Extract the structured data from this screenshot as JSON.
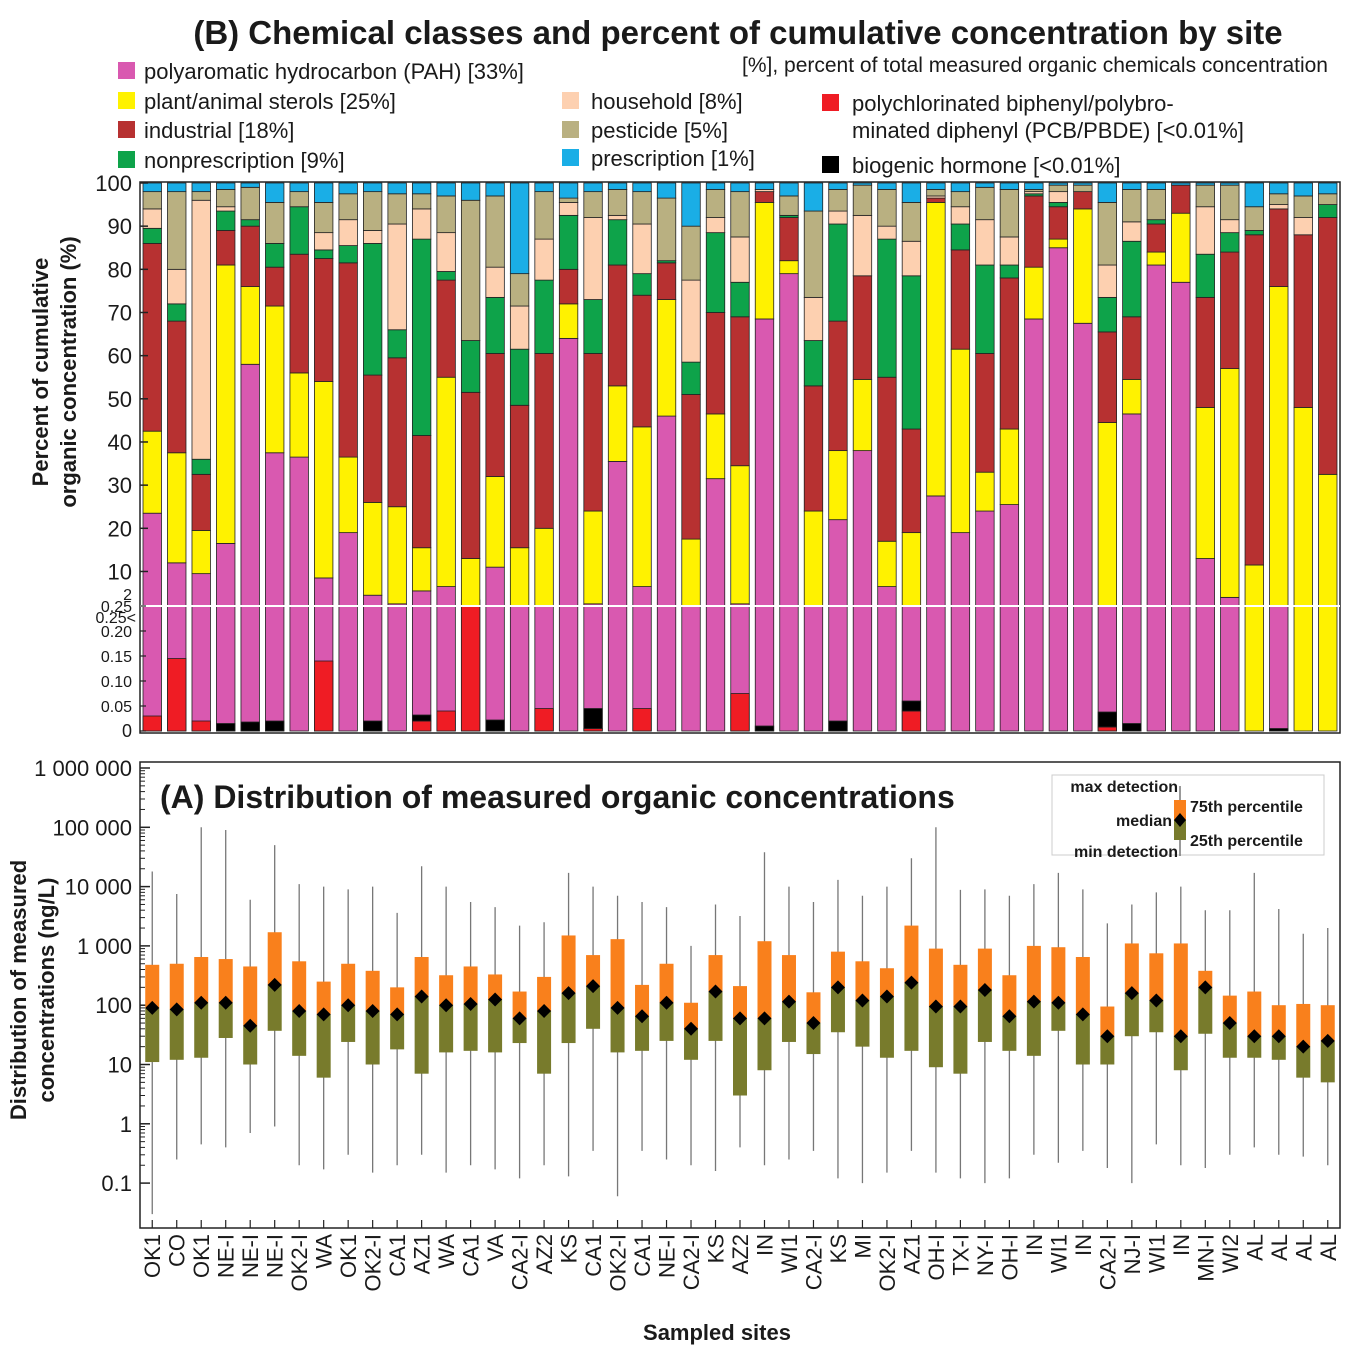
{
  "panel_b": {
    "title": "(B) Chemical classes and percent of cumulative concentration by site",
    "note": "[%], percent of total measured organic chemicals concentration",
    "y_label_line1": "Percent of cumulative",
    "y_label_line2": "organic concentration (%)",
    "legend": [
      {
        "label": "polyaromatic hydrocarbon (PAH) [33%]",
        "color": "#d959b0"
      },
      {
        "label": "plant/animal sterols [25%]",
        "color": "#fff200"
      },
      {
        "label": "industrial [18%]",
        "color": "#b73131"
      },
      {
        "label": "nonprescription [9%]",
        "color": "#0ea34a"
      },
      {
        "label": "household [8%]",
        "color": "#fdd0b0"
      },
      {
        "label": "pesticide [5%]",
        "color": "#b9b081"
      },
      {
        "label": "prescription [1%]",
        "color": "#1aaee6"
      },
      {
        "label": "polychlorinated biphenyl/polybro-",
        "label2": "minated diphenyl (PCB/PBDE) [<0.01%]",
        "color": "#ef1c24"
      },
      {
        "label": "biogenic hormone [<0.01%]",
        "color": "#000000"
      }
    ]
  },
  "panel_a": {
    "title": "(A) Distribution of measured organic concentrations",
    "y_label_line1": "Distribution of measured",
    "y_label_line2": "concentrations  (ng/L)",
    "x_label": "Sampled sites",
    "legend": {
      "max": "max detection",
      "p75": "75th percentile",
      "median": "median",
      "p25": "25th percentile",
      "min": "min detection"
    },
    "colors": {
      "upper": "#f9801c",
      "lower": "#787b2c",
      "median": "#000000",
      "whisker": "#777777"
    }
  },
  "chart_data": [
    {
      "type": "bar",
      "stacked": true,
      "title": "(B) Chemical classes and percent of cumulative concentration by site",
      "ylabel": "Percent of cumulative organic concentration (%)",
      "y_ticks_upper": [
        "10",
        "20",
        "30",
        "40",
        "50",
        "60",
        "70",
        "80",
        "90",
        "100"
      ],
      "y_ticks_lower": [
        "0",
        "0.05",
        "0.10",
        "0.15",
        "0.20",
        "0.25"
      ],
      "y_break_label": "2",
      "y_break_arrow_label": "0.25<",
      "categories": [
        "OK1",
        "CO",
        "OK1",
        "NE-I",
        "NE-I",
        "NE-I",
        "OK2-I",
        "WA",
        "OK1",
        "OK2-I",
        "CA1",
        "AZ1",
        "WA",
        "CA1",
        "VA",
        "CA2-I",
        "AZ2",
        "KS",
        "CA1",
        "OK2-I",
        "CA1",
        "NE-I",
        "CA2-I",
        "KS",
        "AZ2",
        "IN",
        "WI1",
        "CA2-I",
        "KS",
        "MI",
        "OK2-I",
        "AZ1",
        "OH-I",
        "TX-I",
        "NY-I",
        "OH-I",
        "IN",
        "WI1",
        "IN",
        "CA2-I",
        "NJ-I",
        "WI1",
        "IN",
        "MN-I",
        "WI2",
        "AL",
        "AL",
        "AL",
        "AL"
      ],
      "segment_order": [
        "PCB/PBDE",
        "biogenic hormone",
        "PAH",
        "plant/animal sterols",
        "industrial",
        "nonprescription",
        "household",
        "pesticide",
        "prescription"
      ],
      "bottom_detail_values_pct": {
        "PCB/PBDE": [
          0.03,
          0.145,
          0.02,
          0.0,
          0.0,
          0.0,
          0.0,
          0.14,
          0.0,
          0.0,
          0.0,
          0.02,
          0.04,
          0.25,
          0.0,
          0.0,
          0.045,
          0.0,
          0.005,
          0.0,
          0.045,
          0.0,
          0.0,
          0.0,
          0.075,
          0.0,
          0.0,
          0.0,
          0.0,
          0.0,
          0.0,
          0.04,
          0.0,
          0.0,
          0.0,
          0.0,
          0.0,
          0.0,
          0.0,
          0.008,
          0.0,
          0.0,
          0.0,
          0.0,
          0.0,
          0.0,
          0.0,
          0.0,
          0.0
        ],
        "biogenic hormone": [
          0.0,
          0.0,
          0.0,
          0.015,
          0.018,
          0.02,
          0.0,
          0.0,
          0.0,
          0.02,
          0.0,
          0.012,
          0.0,
          0.012,
          0.022,
          0.0,
          0.0,
          0.0,
          0.04,
          0.0,
          0.0,
          0.0,
          0.0,
          0.0,
          0.0,
          0.01,
          0.0,
          0.0,
          0.02,
          0.0,
          0.0,
          0.02,
          0.0,
          0.0,
          0.0,
          0.0,
          0.0,
          0.0,
          0.0,
          0.03,
          0.015,
          0.0,
          0.0,
          0.0,
          0.0,
          0.0,
          0.005,
          0.0,
          0.0
        ]
      },
      "cumulative_tops_pct": {
        "PAH": [
          23.5,
          12,
          9.5,
          16.5,
          58,
          37.5,
          36.5,
          8.5,
          19,
          4.5,
          2.5,
          5.5,
          6.5,
          2,
          11,
          1.5,
          1.5,
          64,
          2.5,
          35.5,
          6.5,
          46,
          1.5,
          31.5,
          2.5,
          68.5,
          79,
          1.5,
          22,
          38,
          6.5,
          1.5,
          27.5,
          19,
          24,
          25.5,
          68.5,
          85,
          67.5,
          1.5,
          46.5,
          81,
          77,
          13,
          4,
          0,
          1.5,
          0,
          0
        ],
        "plant/animal sterols": [
          42.5,
          37.5,
          19.5,
          81,
          76,
          71.5,
          56,
          54,
          36.5,
          26,
          25,
          15.5,
          55,
          13,
          32,
          15.5,
          20,
          72,
          24,
          53,
          43.5,
          73,
          17.5,
          46.5,
          34.5,
          95.5,
          82,
          24,
          38,
          54.5,
          17,
          19,
          95.5,
          61.5,
          33,
          43,
          80.5,
          87,
          94,
          44.5,
          54.5,
          84,
          93,
          48,
          57,
          11.5,
          76,
          48,
          32.5
        ],
        "industrial": [
          86,
          68,
          32.5,
          89,
          90,
          80.5,
          83.5,
          82.5,
          81.5,
          55.5,
          59.5,
          41.5,
          77.5,
          51.5,
          60.5,
          48.5,
          60.5,
          80,
          60.5,
          81,
          74,
          81.5,
          51,
          70,
          69,
          98,
          92,
          53,
          68,
          78.5,
          55,
          43,
          96.5,
          84.5,
          60.5,
          78,
          97,
          94.5,
          98,
          65.5,
          69,
          90.5,
          99.5,
          73.5,
          84,
          88,
          94,
          88,
          92
        ],
        "nonprescription": [
          89.5,
          72,
          36,
          93.5,
          91.5,
          86,
          94.5,
          84.5,
          85.5,
          86,
          66,
          87,
          79.5,
          63.5,
          73.5,
          61.5,
          77.5,
          92.5,
          73,
          91.5,
          79,
          82,
          58.5,
          88.5,
          77,
          98,
          92.5,
          63.5,
          90.5,
          78.5,
          87,
          78.5,
          96.5,
          90.5,
          81,
          81,
          97.5,
          95.5,
          98,
          73.5,
          86.5,
          91.5,
          99.5,
          83.5,
          88.5,
          89,
          94,
          88,
          95
        ],
        "household": [
          94,
          80,
          96,
          94.5,
          91.5,
          86,
          94.5,
          88.5,
          91.5,
          89,
          90.5,
          94,
          88.5,
          63.5,
          80.5,
          71.5,
          87,
          95.5,
          92,
          92.5,
          90.5,
          82,
          77.5,
          92,
          87.5,
          98.5,
          92.5,
          73.5,
          93.5,
          92.5,
          90,
          86.5,
          97,
          94.5,
          91.5,
          87.5,
          98,
          98,
          98,
          81,
          91,
          91.5,
          99.5,
          94.5,
          91.5,
          89,
          95,
          92,
          95
        ],
        "pesticide": [
          98,
          98,
          98,
          98.5,
          99,
          95.5,
          98,
          95.5,
          97.5,
          98,
          97.5,
          97.5,
          97,
          96,
          97,
          79,
          98,
          96.5,
          98,
          98.5,
          98,
          96.5,
          90,
          98.5,
          98,
          98.5,
          97,
          93.5,
          98.5,
          99.5,
          98.5,
          95.5,
          98.5,
          98,
          99,
          98.5,
          98.5,
          99.5,
          99.5,
          95.5,
          98.5,
          98.5,
          99.5,
          99.5,
          99.5,
          94.5,
          97.5,
          97,
          97.5
        ]
      },
      "legend_position": "top"
    },
    {
      "type": "box",
      "title": "(A) Distribution of measured organic concentrations",
      "ylabel": "Distribution of measured concentrations (ng/L)",
      "xlabel": "Sampled sites",
      "y_scale": "log",
      "y_tick_labels": [
        "0.1",
        "1",
        "10",
        "100",
        "1 000",
        "10 000",
        "100 000",
        "1 000 000"
      ],
      "categories": [
        "OK1",
        "CO",
        "OK1",
        "NE-I",
        "NE-I",
        "NE-I",
        "OK2-I",
        "WA",
        "OK1",
        "OK2-I",
        "CA1",
        "AZ1",
        "WA",
        "CA1",
        "VA",
        "CA2-I",
        "AZ2",
        "KS",
        "CA1",
        "OK2-I",
        "CA1",
        "NE-I",
        "CA2-I",
        "KS",
        "AZ2",
        "IN",
        "WI1",
        "CA2-I",
        "KS",
        "MI",
        "OK2-I",
        "AZ1",
        "OH-I",
        "TX-I",
        "NY-I",
        "OH-I",
        "IN",
        "WI1",
        "IN",
        "CA2-I",
        "NJ-I",
        "WI1",
        "IN",
        "MN-I",
        "WI2",
        "AL",
        "AL",
        "AL",
        "AL"
      ],
      "max": [
        18000,
        7500,
        100000,
        90000,
        6000,
        50000,
        11000,
        10000,
        9000,
        10000,
        3600,
        22000,
        10000,
        5500,
        4500,
        2200,
        2500,
        17000,
        10000,
        7000,
        5500,
        4500,
        1000,
        5000,
        3200,
        38000,
        10000,
        5500,
        13000,
        7000,
        10000,
        30000,
        100000,
        8800,
        9000,
        7000,
        11000,
        17000,
        9000,
        2400,
        5000,
        8000,
        10000,
        4000,
        4000,
        17000,
        4200,
        1600,
        2000
      ],
      "p75": [
        480,
        500,
        650,
        600,
        450,
        1700,
        550,
        250,
        500,
        380,
        200,
        650,
        320,
        450,
        330,
        170,
        300,
        1500,
        700,
        1300,
        220,
        500,
        110,
        700,
        210,
        1200,
        700,
        165,
        800,
        550,
        420,
        2200,
        900,
        480,
        900,
        320,
        1000,
        950,
        650,
        95,
        1100,
        750,
        1100,
        380,
        145,
        170,
        100,
        105,
        100
      ],
      "median": [
        90,
        85,
        110,
        110,
        45,
        220,
        80,
        70,
        100,
        80,
        70,
        140,
        100,
        105,
        125,
        60,
        80,
        160,
        210,
        90,
        65,
        110,
        40,
        170,
        60,
        60,
        115,
        50,
        200,
        120,
        140,
        240,
        95,
        95,
        180,
        65,
        115,
        110,
        70,
        30,
        160,
        120,
        30,
        200,
        50,
        30,
        30,
        20,
        25
      ],
      "p25": [
        11,
        12,
        13,
        28,
        10,
        37,
        14,
        6,
        24,
        10,
        18,
        7,
        16,
        17,
        16,
        23,
        7,
        23,
        40,
        16,
        17,
        25,
        12,
        25,
        3,
        8,
        24,
        15,
        35,
        20,
        13,
        17,
        9,
        7,
        24,
        17,
        14,
        37,
        10,
        10,
        30,
        35,
        8,
        33,
        13,
        13,
        12,
        6,
        5
      ],
      "min": [
        0.03,
        0.25,
        0.45,
        0.4,
        0.7,
        0.9,
        0.2,
        0.17,
        0.3,
        0.15,
        0.2,
        0.3,
        0.15,
        0.2,
        0.17,
        0.12,
        0.2,
        0.13,
        0.35,
        0.06,
        0.35,
        0.25,
        0.2,
        0.16,
        0.4,
        0.2,
        0.25,
        0.35,
        0.12,
        0.1,
        0.15,
        0.35,
        0.15,
        0.12,
        0.1,
        0.12,
        0.3,
        0.22,
        0.35,
        0.18,
        0.1,
        0.45,
        0.2,
        0.18,
        0.3,
        0.4,
        0.3,
        0.28,
        0.2
      ],
      "legend_position": "top-right"
    }
  ]
}
